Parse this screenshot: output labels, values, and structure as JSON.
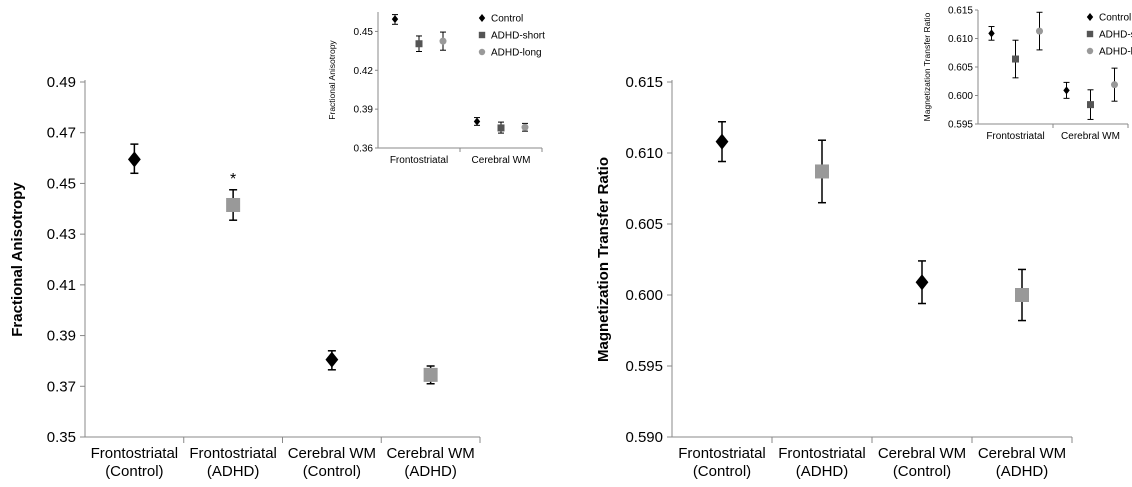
{
  "chart_data": [
    {
      "type": "scatter",
      "ylabel": "Fractional Anisotropy",
      "ylim": [
        0.35,
        0.49
      ],
      "yticks": [
        "0.35",
        "0.37",
        "0.39",
        "0.41",
        "0.43",
        "0.45",
        "0.47",
        "0.49"
      ],
      "categories": [
        [
          "Frontostriatal",
          "(Control)"
        ],
        [
          "Frontostriatal",
          "(ADHD)"
        ],
        [
          "Cerebral WM",
          "(Control)"
        ],
        [
          "Cerebral WM",
          "(ADHD)"
        ]
      ],
      "points": [
        {
          "category": 0,
          "value": 0.4595,
          "err_low": 0.454,
          "err_high": 0.4655,
          "marker": "diamond",
          "color": "#000000"
        },
        {
          "category": 1,
          "value": 0.4415,
          "err_low": 0.4355,
          "err_high": 0.4475,
          "marker": "square",
          "color": "#999999",
          "annotation": "*"
        },
        {
          "category": 2,
          "value": 0.3805,
          "err_low": 0.3765,
          "err_high": 0.384,
          "marker": "diamond",
          "color": "#000000"
        },
        {
          "category": 3,
          "value": 0.3745,
          "err_low": 0.371,
          "err_high": 0.378,
          "marker": "square",
          "color": "#999999"
        }
      ]
    },
    {
      "type": "scatter",
      "inset_of": 0,
      "ylabel": "Fractional Anisotropy",
      "ylim": [
        0.36,
        0.465
      ],
      "yticks": [
        "0.36",
        "0.39",
        "0.42",
        "0.45"
      ],
      "groups": [
        "Frontostriatal",
        "Cerebral WM"
      ],
      "legend": [
        {
          "name": "Control",
          "marker": "diamond",
          "color": "#000000"
        },
        {
          "name": "ADHD-short",
          "marker": "square",
          "color": "#555555"
        },
        {
          "name": "ADHD-long",
          "marker": "circle",
          "color": "#999999"
        }
      ],
      "legend_position": "top-right",
      "series": [
        {
          "name": "Control",
          "values": [
            0.4595,
            0.3805
          ],
          "err_low": [
            0.4555,
            0.3775
          ],
          "err_high": [
            0.463,
            0.3835
          ]
        },
        {
          "name": "ADHD-short",
          "values": [
            0.4405,
            0.3755
          ],
          "err_low": [
            0.4345,
            0.3715
          ],
          "err_high": [
            0.4465,
            0.38
          ]
        },
        {
          "name": "ADHD-long",
          "values": [
            0.4425,
            0.376
          ],
          "err_low": [
            0.4355,
            0.373
          ],
          "err_high": [
            0.4495,
            0.379
          ]
        }
      ]
    },
    {
      "type": "scatter",
      "ylabel": "Magnetization Transfer Ratio",
      "ylim": [
        0.59,
        0.615
      ],
      "yticks": [
        "0.590",
        "0.595",
        "0.600",
        "0.605",
        "0.610",
        "0.615"
      ],
      "categories": [
        [
          "Frontostriatal",
          "(Control)"
        ],
        [
          "Frontostriatal",
          "(ADHD)"
        ],
        [
          "Cerebral WM",
          "(Control)"
        ],
        [
          "Cerebral WM",
          "(ADHD)"
        ]
      ],
      "points": [
        {
          "category": 0,
          "value": 0.6108,
          "err_low": 0.6094,
          "err_high": 0.6122,
          "marker": "diamond",
          "color": "#000000"
        },
        {
          "category": 1,
          "value": 0.6087,
          "err_low": 0.6065,
          "err_high": 0.6109,
          "marker": "square",
          "color": "#999999"
        },
        {
          "category": 2,
          "value": 0.6009,
          "err_low": 0.5994,
          "err_high": 0.6024,
          "marker": "diamond",
          "color": "#000000"
        },
        {
          "category": 3,
          "value": 0.6,
          "err_low": 0.5982,
          "err_high": 0.6018,
          "marker": "square",
          "color": "#999999"
        }
      ]
    },
    {
      "type": "scatter",
      "inset_of": 2,
      "ylabel": "Magnetization Transfer Ratio",
      "ylim": [
        0.595,
        0.615
      ],
      "yticks": [
        "0.595",
        "0.600",
        "0.605",
        "0.610",
        "0.615"
      ],
      "groups": [
        "Frontostriatal",
        "Cerebral WM"
      ],
      "legend": [
        {
          "name": "Control",
          "marker": "diamond",
          "color": "#000000"
        },
        {
          "name": "ADHD-short",
          "marker": "square",
          "color": "#555555"
        },
        {
          "name": "ADHD-long",
          "marker": "circle",
          "color": "#999999"
        }
      ],
      "legend_position": "top-right",
      "series": [
        {
          "name": "Control",
          "values": [
            0.6109,
            0.6009
          ],
          "err_low": [
            0.6097,
            0.5995
          ],
          "err_high": [
            0.6121,
            0.6023
          ]
        },
        {
          "name": "ADHD-short",
          "values": [
            0.6064,
            0.5984
          ],
          "err_low": [
            0.6031,
            0.5958
          ],
          "err_high": [
            0.6097,
            0.601
          ]
        },
        {
          "name": "ADHD-long",
          "values": [
            0.6113,
            0.6019
          ],
          "err_low": [
            0.608,
            0.599
          ],
          "err_high": [
            0.6146,
            0.6048
          ]
        }
      ]
    }
  ]
}
